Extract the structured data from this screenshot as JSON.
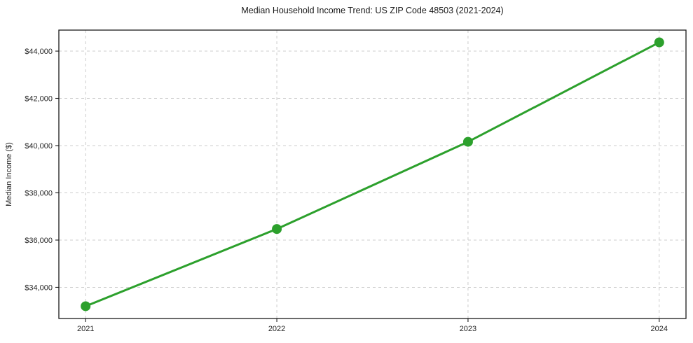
{
  "chart_data": {
    "type": "line",
    "title": "Median Household Income Trend: US ZIP Code 48503 (2021-2024)",
    "xlabel": "",
    "ylabel": "Median Income ($)",
    "x": [
      2021,
      2022,
      2023,
      2024
    ],
    "x_tick_labels": [
      "2021",
      "2022",
      "2023",
      "2024"
    ],
    "values": [
      33200,
      36470,
      40160,
      44370
    ],
    "y_ticks": [
      34000,
      36000,
      38000,
      40000,
      42000,
      44000
    ],
    "y_tick_labels": [
      "$34,000",
      "$36,000",
      "$38,000",
      "$40,000",
      "$42,000",
      "$44,000"
    ],
    "xlim": [
      2020.86,
      2024.14
    ],
    "ylim": [
      32680,
      44890
    ],
    "grid": true,
    "legend": false,
    "colors": {
      "line": "#2ca02c",
      "marker": "#2ca02c",
      "grid": "#cccccc",
      "axis": "#1a1a1a",
      "text": "#262626",
      "background": "#ffffff"
    }
  }
}
